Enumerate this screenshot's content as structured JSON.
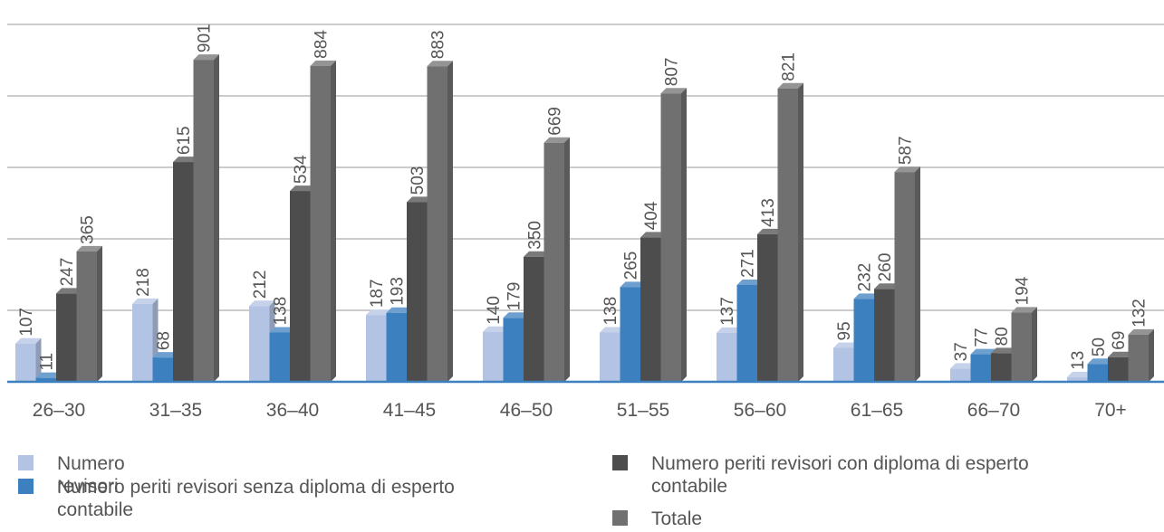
{
  "chart_data": {
    "type": "bar",
    "categories": [
      "26–30",
      "31–35",
      "36–40",
      "41–45",
      "46–50",
      "51–55",
      "56–60",
      "61–65",
      "66–70",
      "70+"
    ],
    "series": [
      {
        "name": "Numero revisori",
        "color": "#b3c3e3",
        "values": [
          107,
          218,
          212,
          187,
          140,
          138,
          137,
          95,
          37,
          13
        ]
      },
      {
        "name": "Numero periti revisori senza diploma di esperto contabile",
        "color": "#3d80bf",
        "values": [
          11,
          68,
          138,
          193,
          179,
          265,
          271,
          232,
          77,
          50
        ]
      },
      {
        "name": "Numero periti revisori con diploma di esperto contabile",
        "color": "#4d4d4d",
        "values": [
          247,
          615,
          534,
          503,
          350,
          404,
          413,
          260,
          80,
          69
        ]
      },
      {
        "name": "Totale",
        "color": "#707070",
        "values": [
          365,
          901,
          884,
          883,
          669,
          807,
          821,
          587,
          194,
          132
        ]
      }
    ],
    "ylim": [
      0,
      1000
    ],
    "grid": true,
    "legend_position": "bottom"
  }
}
